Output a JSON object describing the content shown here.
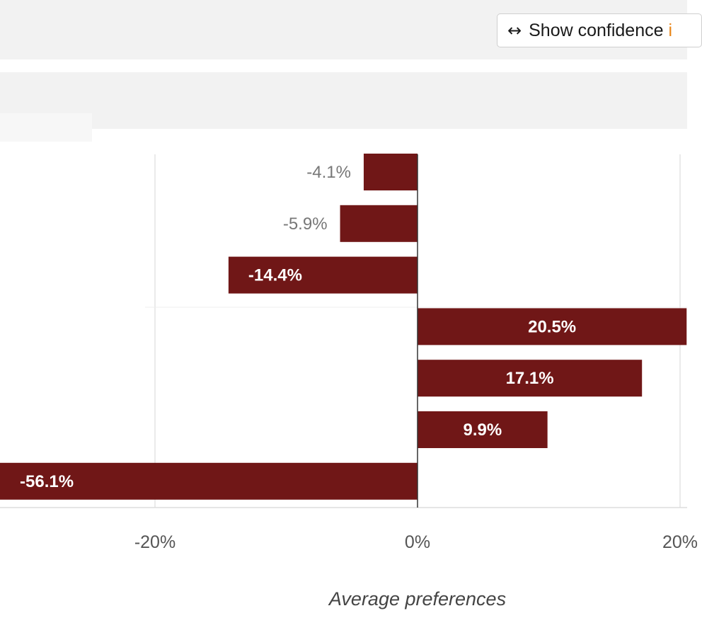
{
  "toolbar": {
    "ci_button_text": "Show confidence ",
    "ci_button_accent": "i",
    "ci_button_icon": "left-right-arrow-icon"
  },
  "colors": {
    "bar": "#701717",
    "accent": "#e8861a"
  },
  "chart_data": {
    "type": "bar",
    "orientation": "horizontal",
    "values": [
      -4.1,
      -5.9,
      -14.4,
      20.5,
      17.1,
      9.9,
      -56.1
    ],
    "value_labels": [
      "-4.1%",
      "-5.9%",
      "-14.4%",
      "20.5%",
      "17.1%",
      "9.9%",
      "-56.1%"
    ],
    "x_ticks": [
      -20,
      0,
      20
    ],
    "x_tick_labels": [
      "-20%",
      "0%",
      "20%"
    ],
    "xlabel": "Average preferences",
    "xlim": [
      -32,
      20.5
    ],
    "grid": true
  }
}
